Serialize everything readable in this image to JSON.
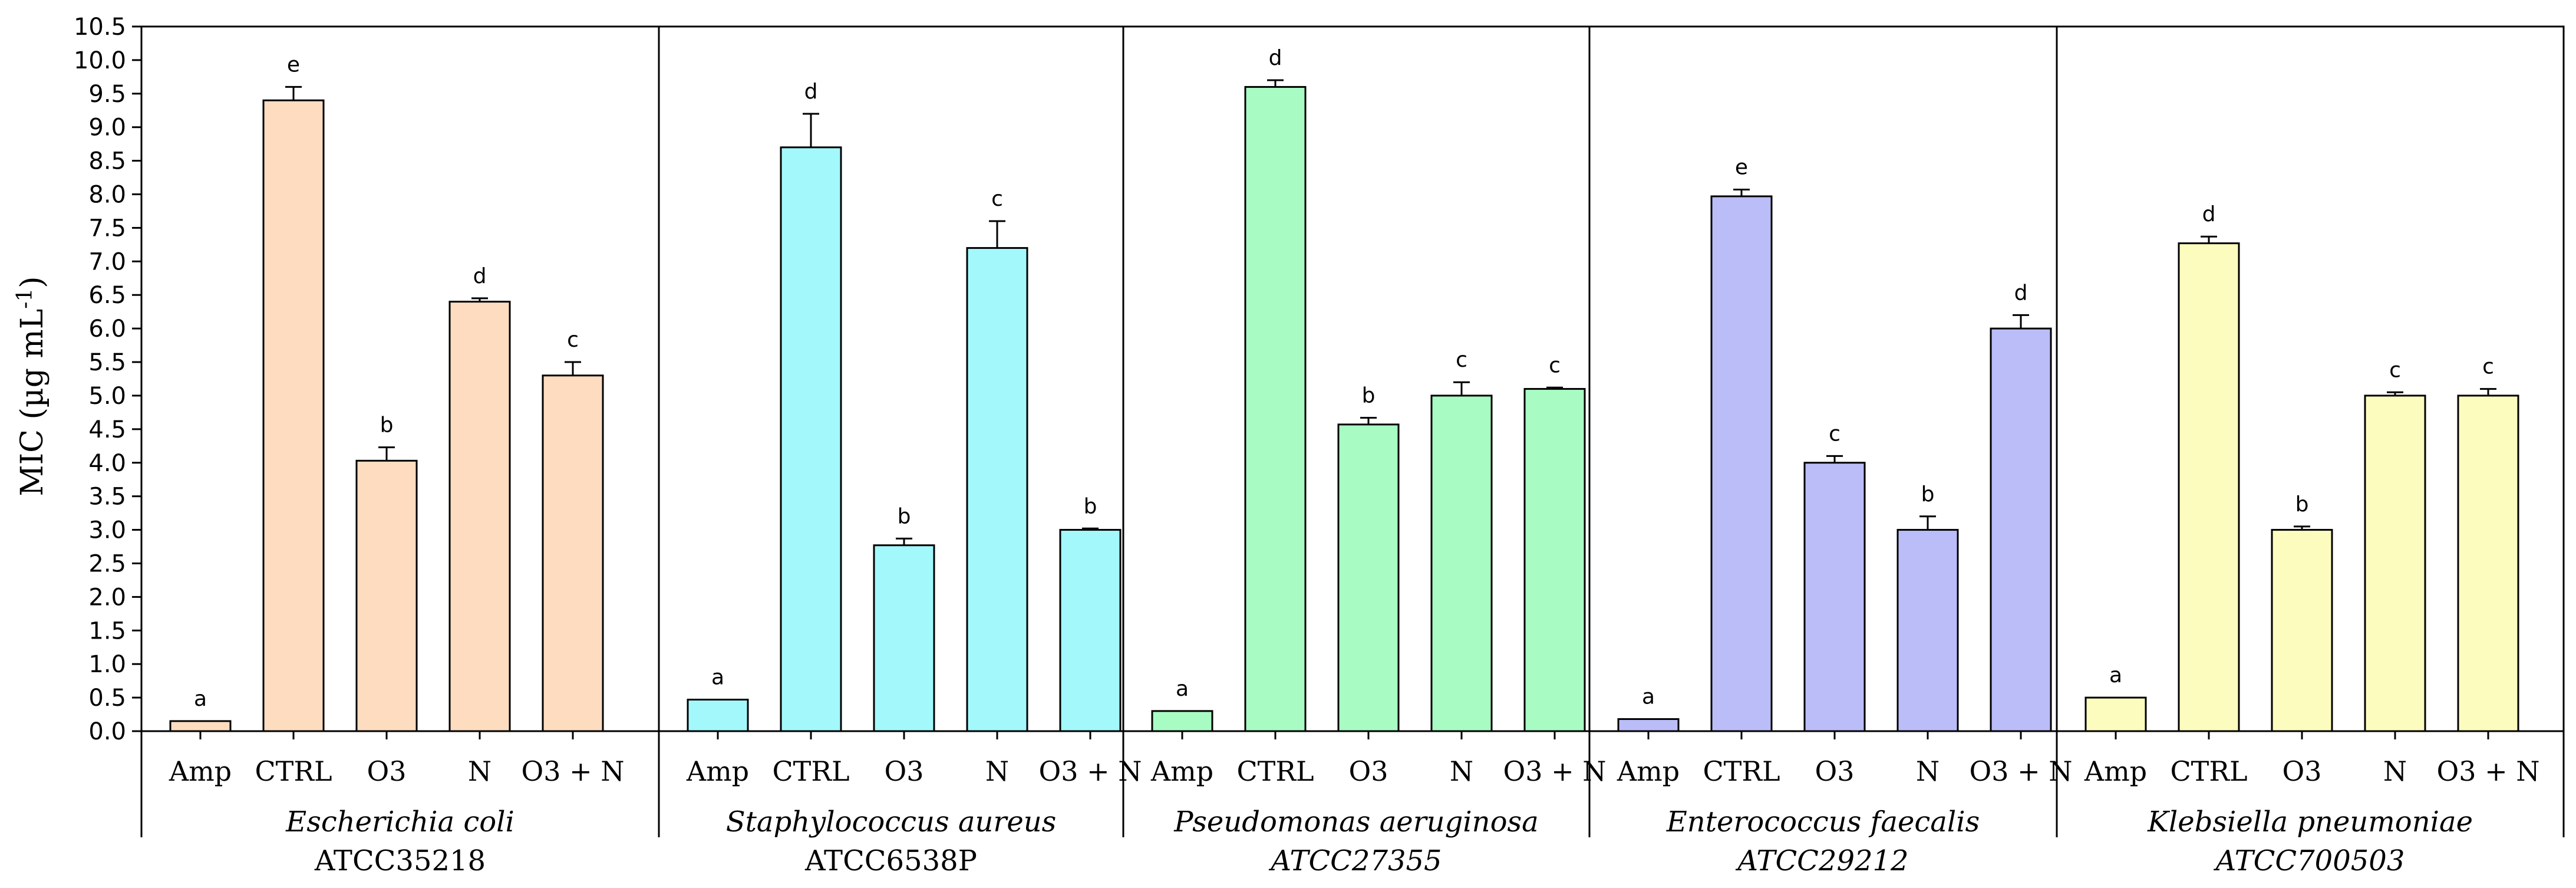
{
  "chart_data": {
    "type": "bar",
    "ylabel": "MIC (µg mL",
    "ylabel_superscript": "-1",
    "ylabel_suffix": ")",
    "ylim": [
      0,
      10.5
    ],
    "ytick_step": 0.5,
    "yticks": [
      "0.0",
      "0.5",
      "1.0",
      "1.5",
      "2.0",
      "2.5",
      "3.0",
      "3.5",
      "4.0",
      "4.5",
      "5.0",
      "5.5",
      "6.0",
      "6.5",
      "7.0",
      "7.5",
      "8.0",
      "8.5",
      "9.0",
      "9.5",
      "10.0",
      "10.5"
    ],
    "categories": [
      "Amp",
      "CTRL",
      "O3",
      "N",
      "O3 + N"
    ],
    "groups": [
      {
        "name": "Escherichia coli",
        "strain": "ATCC35218",
        "strain_italic": false,
        "color": "#FDDCC0",
        "values": [
          0.15,
          9.4,
          4.03,
          6.4,
          5.3
        ],
        "errors": [
          0.0,
          0.2,
          0.2,
          0.05,
          0.2
        ],
        "letters": [
          "a",
          "e",
          "b",
          "d",
          "c"
        ]
      },
      {
        "name": "Staphylococcus aureus",
        "strain": "ATCC6538P",
        "strain_italic": false,
        "color": "#A3F8FB",
        "values": [
          0.47,
          8.7,
          2.77,
          7.2,
          3.0
        ],
        "errors": [
          0.0,
          0.5,
          0.1,
          0.4,
          0.02
        ],
        "letters": [
          "a",
          "d",
          "b",
          "c",
          "b"
        ]
      },
      {
        "name": "Pseudomonas aeruginosa",
        "strain": "ATCC27355",
        "strain_italic": true,
        "color": "#A8FBC3",
        "values": [
          0.3,
          9.6,
          4.57,
          5.0,
          5.1
        ],
        "errors": [
          0.0,
          0.1,
          0.1,
          0.2,
          0.02
        ],
        "letters": [
          "a",
          "d",
          "b",
          "c",
          "c"
        ]
      },
      {
        "name": "Enterococcus faecalis",
        "strain": "ATCC29212",
        "strain_italic": true,
        "color": "#BABDF8",
        "values": [
          0.18,
          7.97,
          4.0,
          3.0,
          6.0
        ],
        "errors": [
          0.0,
          0.1,
          0.1,
          0.2,
          0.2
        ],
        "letters": [
          "a",
          "e",
          "c",
          "b",
          "d"
        ]
      },
      {
        "name": "Klebsiella pneumoniae",
        "strain": "ATCC700503",
        "strain_italic": true,
        "color": "#FCFCBF",
        "values": [
          0.5,
          7.27,
          3.0,
          5.0,
          5.0
        ],
        "errors": [
          0.0,
          0.1,
          0.05,
          0.05,
          0.1
        ],
        "letters": [
          "a",
          "d",
          "b",
          "c",
          "c"
        ]
      }
    ]
  }
}
